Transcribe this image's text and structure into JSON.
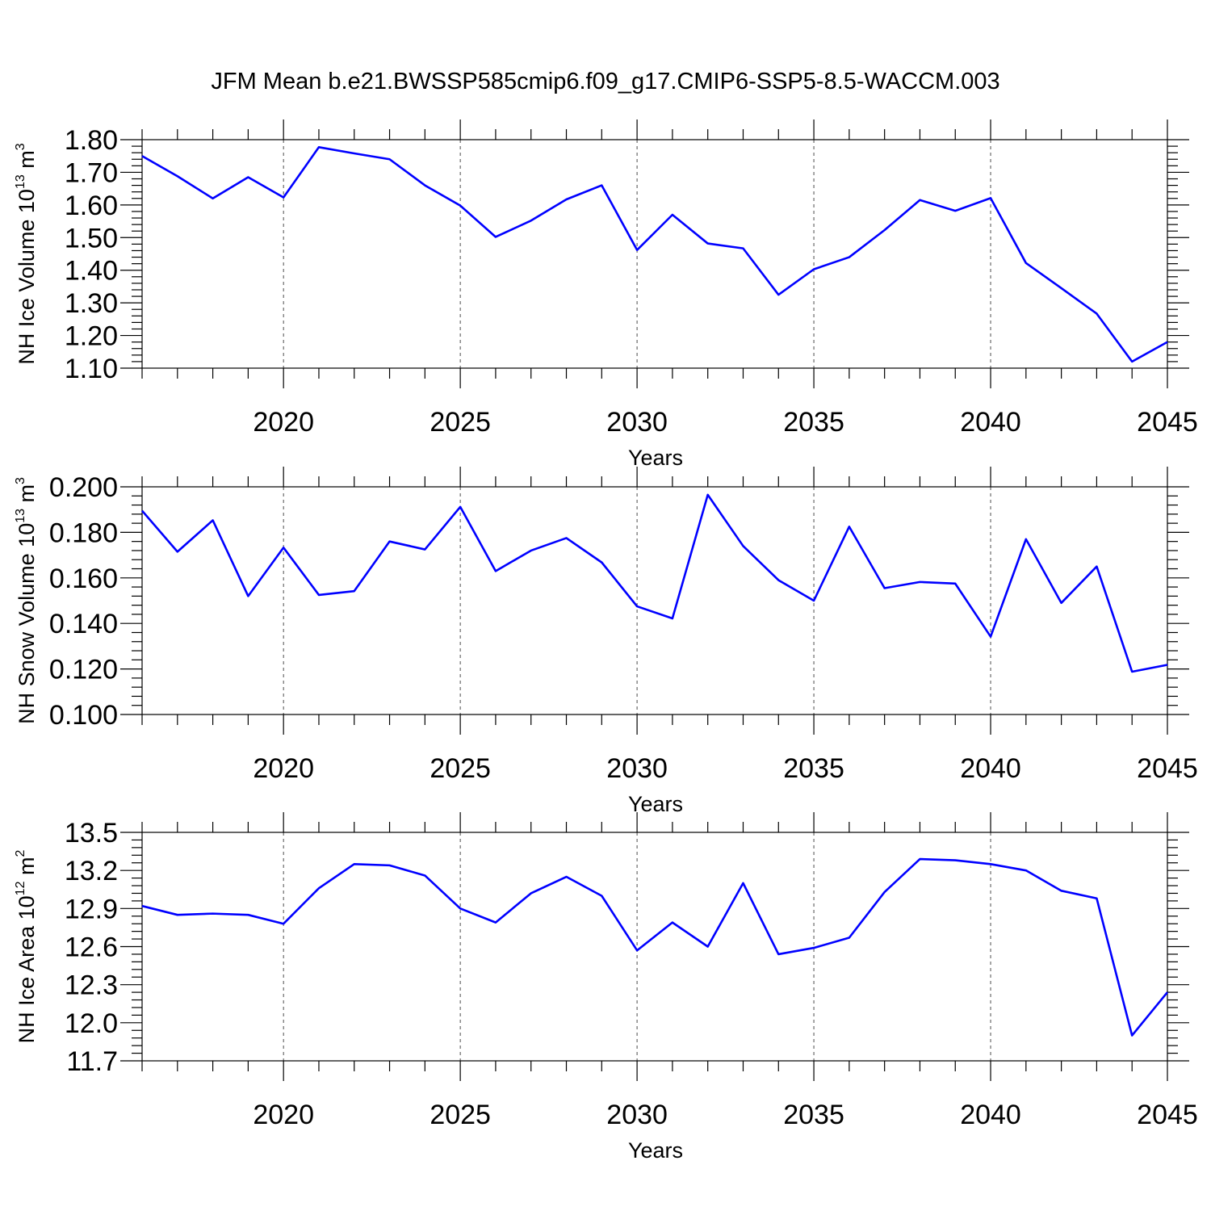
{
  "figure": {
    "title": "JFM Mean b.e21.BWSSP585cmip6.f09_g17.CMIP6-SSP5-8.5-WACCM.003"
  },
  "chart_data": [
    {
      "type": "line",
      "title": "",
      "xlabel": "Years",
      "ylabel": {
        "base": "NH Ice Volume 10",
        "exp": "13",
        "unit": " m",
        "unit_exp": "3"
      },
      "xlim": [
        2016,
        2045
      ],
      "ylim": [
        1.1,
        1.8
      ],
      "xticks": [
        2020,
        2025,
        2030,
        2035,
        2040,
        2045
      ],
      "xtick_labels": [
        "2020",
        "2025",
        "2030",
        "2035",
        "2040",
        "2045"
      ],
      "yticks": [
        1.1,
        1.2,
        1.3,
        1.4,
        1.5,
        1.6,
        1.7,
        1.8
      ],
      "ytick_labels": [
        "1.10",
        "1.20",
        "1.30",
        "1.40",
        "1.50",
        "1.60",
        "1.70",
        "1.80"
      ],
      "grid": "dashed vertical at major x ticks",
      "series": [
        {
          "name": "NH Ice Volume",
          "color": "#0000ff",
          "x": [
            2016,
            2017,
            2018,
            2019,
            2020,
            2021,
            2022,
            2023,
            2024,
            2025,
            2026,
            2027,
            2028,
            2029,
            2030,
            2031,
            2032,
            2033,
            2034,
            2035,
            2036,
            2037,
            2038,
            2039,
            2040,
            2041,
            2042,
            2043,
            2044,
            2045
          ],
          "y": [
            1.75,
            1.688,
            1.62,
            1.685,
            1.623,
            1.777,
            1.758,
            1.74,
            1.66,
            1.598,
            1.502,
            1.552,
            1.617,
            1.66,
            1.462,
            1.57,
            1.482,
            1.467,
            1.325,
            1.403,
            1.44,
            1.523,
            1.615,
            1.582,
            1.621,
            1.422,
            1.345,
            1.267,
            1.12,
            1.18
          ]
        }
      ]
    },
    {
      "type": "line",
      "title": "",
      "xlabel": "Years",
      "ylabel": {
        "base": "NH Snow Volume 10",
        "exp": "13",
        "unit": " m",
        "unit_exp": "3"
      },
      "xlim": [
        2016,
        2045
      ],
      "ylim": [
        0.1,
        0.2
      ],
      "xticks": [
        2020,
        2025,
        2030,
        2035,
        2040,
        2045
      ],
      "xtick_labels": [
        "2020",
        "2025",
        "2030",
        "2035",
        "2040",
        "2045"
      ],
      "yticks": [
        0.1,
        0.12,
        0.14,
        0.16,
        0.18,
        0.2
      ],
      "ytick_labels": [
        "0.100",
        "0.120",
        "0.140",
        "0.160",
        "0.180",
        "0.200"
      ],
      "grid": "dashed vertical at major x ticks",
      "series": [
        {
          "name": "NH Snow Volume",
          "color": "#0000ff",
          "x": [
            2016,
            2017,
            2018,
            2019,
            2020,
            2021,
            2022,
            2023,
            2024,
            2025,
            2026,
            2027,
            2028,
            2029,
            2030,
            2031,
            2032,
            2033,
            2034,
            2035,
            2036,
            2037,
            2038,
            2039,
            2040,
            2041,
            2042,
            2043,
            2044,
            2045
          ],
          "y": [
            0.1895,
            0.1715,
            0.1853,
            0.152,
            0.1733,
            0.1525,
            0.1542,
            0.176,
            0.1725,
            0.1912,
            0.163,
            0.172,
            0.1775,
            0.1668,
            0.1475,
            0.1422,
            0.1965,
            0.174,
            0.159,
            0.15,
            0.1825,
            0.1555,
            0.1582,
            0.1575,
            0.1342,
            0.177,
            0.149,
            0.165,
            0.1188,
            0.1218
          ]
        }
      ]
    },
    {
      "type": "line",
      "title": "",
      "xlabel": "Years",
      "ylabel": {
        "base": "NH Ice Area 10",
        "exp": "12",
        "unit": " m",
        "unit_exp": "2"
      },
      "xlim": [
        2016,
        2045
      ],
      "ylim": [
        11.7,
        13.5
      ],
      "xticks": [
        2020,
        2025,
        2030,
        2035,
        2040,
        2045
      ],
      "xtick_labels": [
        "2020",
        "2025",
        "2030",
        "2035",
        "2040",
        "2045"
      ],
      "yticks": [
        11.7,
        12.0,
        12.3,
        12.6,
        12.9,
        13.2,
        13.5
      ],
      "ytick_labels": [
        "11.7",
        "12.0",
        "12.3",
        "12.6",
        "12.9",
        "13.2",
        "13.5"
      ],
      "grid": "dashed vertical at major x ticks",
      "series": [
        {
          "name": "NH Ice Area",
          "color": "#0000ff",
          "x": [
            2016,
            2017,
            2018,
            2019,
            2020,
            2021,
            2022,
            2023,
            2024,
            2025,
            2026,
            2027,
            2028,
            2029,
            2030,
            2031,
            2032,
            2033,
            2034,
            2035,
            2036,
            2037,
            2038,
            2039,
            2040,
            2041,
            2042,
            2043,
            2044,
            2045
          ],
          "y": [
            12.92,
            12.85,
            12.86,
            12.85,
            12.78,
            13.06,
            13.25,
            13.24,
            13.16,
            12.9,
            12.79,
            13.02,
            13.15,
            13.0,
            12.57,
            12.79,
            12.6,
            13.1,
            12.54,
            12.59,
            12.67,
            13.03,
            13.29,
            13.28,
            13.25,
            13.2,
            13.04,
            12.98,
            11.9,
            12.24
          ]
        }
      ]
    }
  ]
}
